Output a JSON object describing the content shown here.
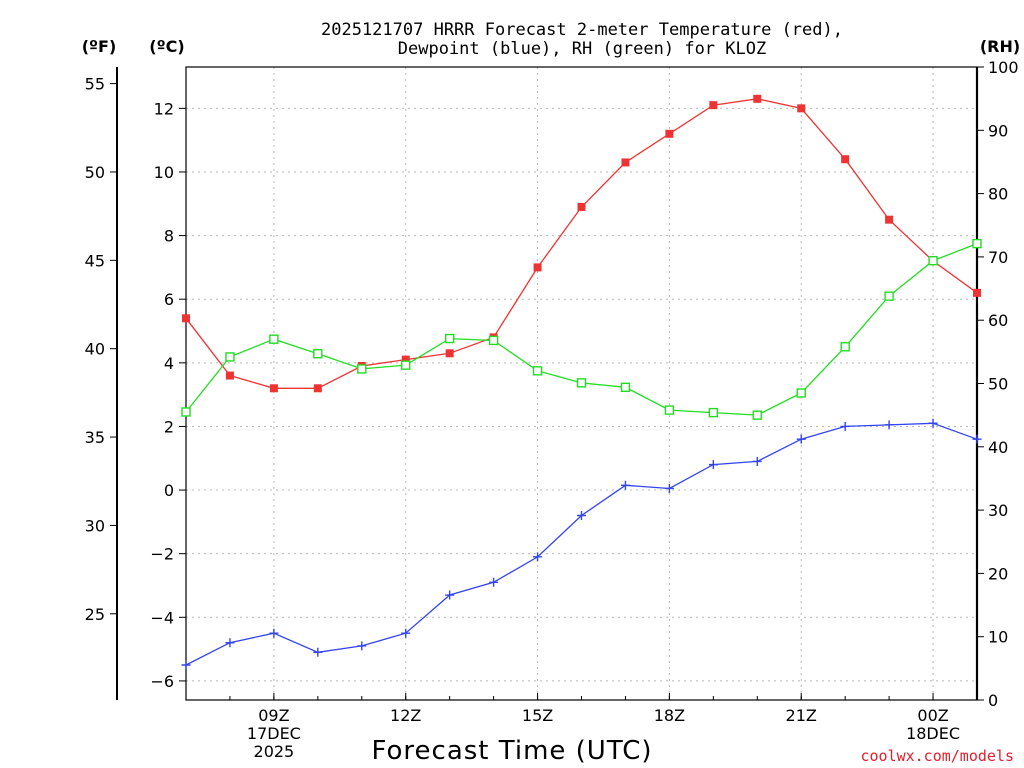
{
  "header": {
    "title_line1": "2025121707 HRRR Forecast 2-meter Temperature (red),",
    "title_line2": "Dewpoint (blue), RH (green) for KLOZ"
  },
  "units": {
    "fahrenheit": "(ºF)",
    "celsius": "(ºC)",
    "rh": "(RH)"
  },
  "footer": {
    "xlabel": "Forecast Time (UTC)",
    "source": "coolwx.com/models"
  },
  "colors": {
    "temperature": "#ee3333",
    "dewpoint": "#3344ee",
    "rh": "#22dd22"
  },
  "chart_data": {
    "type": "line",
    "title": "2025121707 HRRR Forecast 2-meter Temperature (red), Dewpoint (blue), RH (green) for KLOZ",
    "xlabel": "Forecast Time (UTC)",
    "x_hours": [
      7,
      8,
      9,
      10,
      11,
      12,
      13,
      14,
      15,
      16,
      17,
      18,
      19,
      20,
      21,
      22,
      23,
      24,
      25
    ],
    "x_range": [
      7,
      25
    ],
    "x_ticks": [
      {
        "hour": 9,
        "lines": [
          "09Z",
          "17DEC",
          "2025"
        ]
      },
      {
        "hour": 12,
        "lines": [
          "12Z"
        ]
      },
      {
        "hour": 15,
        "lines": [
          "15Z"
        ]
      },
      {
        "hour": 18,
        "lines": [
          "18Z"
        ]
      },
      {
        "hour": 21,
        "lines": [
          "21Z"
        ]
      },
      {
        "hour": 24,
        "lines": [
          "00Z",
          "18DEC"
        ]
      }
    ],
    "celsius_axis": {
      "ylim": [
        -6.6,
        13.3
      ],
      "ticks": [
        -6,
        -4,
        -2,
        0,
        2,
        4,
        6,
        8,
        10,
        12
      ]
    },
    "fahrenheit_axis": {
      "ticks": [
        25,
        30,
        35,
        40,
        45,
        50,
        55
      ]
    },
    "rh_axis": {
      "ylim": [
        0,
        100
      ],
      "ticks": [
        0,
        10,
        20,
        30,
        40,
        50,
        60,
        70,
        80,
        90,
        100
      ]
    },
    "series": [
      {
        "name": "Temperature",
        "unit": "C",
        "color": "#ee3333",
        "marker": "filled-square",
        "values": [
          5.4,
          3.6,
          3.2,
          3.2,
          3.9,
          4.1,
          4.3,
          4.8,
          7.0,
          8.9,
          10.3,
          11.2,
          12.1,
          12.3,
          12.0,
          10.4,
          8.5,
          7.2,
          6.2
        ]
      },
      {
        "name": "Dewpoint",
        "unit": "C",
        "color": "#3344ee",
        "marker": "plus",
        "values": [
          -5.5,
          -4.8,
          -4.5,
          -5.1,
          -4.9,
          -4.5,
          -3.3,
          -2.9,
          -2.1,
          -0.8,
          0.15,
          0.05,
          0.8,
          0.9,
          1.6,
          2.0,
          2.05,
          2.1,
          1.6
        ]
      },
      {
        "name": "RH",
        "unit": "%",
        "color": "#22dd22",
        "marker": "open-square",
        "values": [
          45.5,
          54.2,
          57.0,
          54.7,
          52.3,
          52.9,
          57.1,
          56.8,
          52.0,
          50.1,
          49.4,
          45.8,
          45.4,
          45.0,
          48.5,
          55.8,
          63.8,
          69.4,
          72.1
        ]
      }
    ]
  }
}
